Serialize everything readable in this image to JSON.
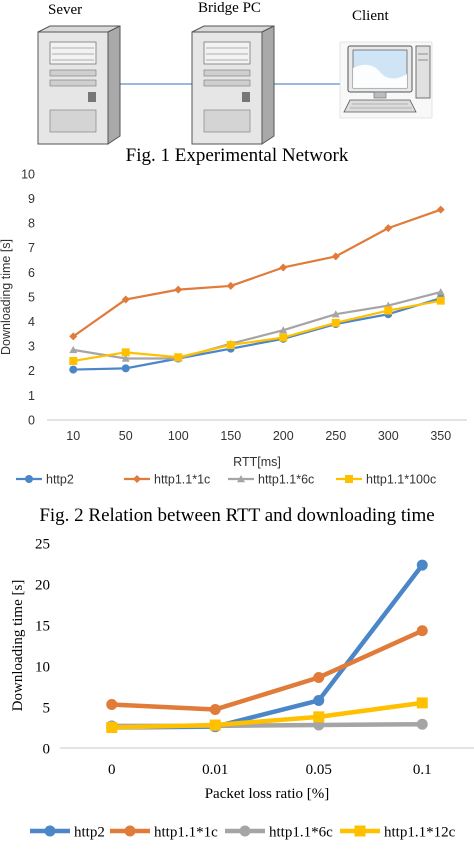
{
  "figure1": {
    "caption": "Fig. 1 Experimental Network",
    "nodes": [
      {
        "label": "Sever",
        "icon": "server-icon"
      },
      {
        "label": "Bridge PC",
        "icon": "server-icon"
      },
      {
        "label": "Client",
        "icon": "desktop-computer-icon"
      }
    ],
    "link_color": "#5b8fc7"
  },
  "chart_data": [
    {
      "type": "line",
      "caption": "Fig. 2 Relation between RTT and downloading time",
      "xlabel": "RTT[ms]",
      "ylabel": "Downloading time [s]",
      "categories": [
        "10",
        "50",
        "100",
        "150",
        "200",
        "250",
        "300",
        "350"
      ],
      "ylim": [
        0,
        10
      ],
      "yticks": [
        0,
        1,
        2,
        3,
        4,
        5,
        6,
        7,
        8,
        9,
        10
      ],
      "grid": false,
      "legend": "bottom",
      "series": [
        {
          "name": "http2",
          "color": "#4a86c8",
          "marker": "circle",
          "values": [
            2.05,
            2.1,
            2.5,
            2.9,
            3.3,
            3.9,
            4.3,
            4.95
          ]
        },
        {
          "name": "http1.1*1c",
          "color": "#e07b39",
          "marker": "diamond",
          "values": [
            3.4,
            4.9,
            5.3,
            5.45,
            6.2,
            6.65,
            7.8,
            8.55
          ]
        },
        {
          "name": "http1.1*6c",
          "color": "#a5a5a5",
          "marker": "triangle",
          "values": [
            2.85,
            2.5,
            2.5,
            3.1,
            3.65,
            4.3,
            4.65,
            5.2
          ]
        },
        {
          "name": "http1.1*100c",
          "color": "#ffc000",
          "marker": "square",
          "values": [
            2.4,
            2.75,
            2.55,
            3.05,
            3.35,
            3.95,
            4.45,
            4.85
          ]
        }
      ]
    },
    {
      "type": "line",
      "caption": "",
      "xlabel": "Packet loss ratio [%]",
      "ylabel": "Downloading  time [s]",
      "categories": [
        "0",
        "0.01",
        "0.05",
        "0.1"
      ],
      "ylim": [
        0,
        25
      ],
      "yticks": [
        0,
        5,
        10,
        15,
        20,
        25
      ],
      "grid": false,
      "legend": "bottom",
      "series": [
        {
          "name": "http2",
          "color": "#4a86c8",
          "marker": "circle",
          "values": [
            2.5,
            2.6,
            5.8,
            22.3
          ]
        },
        {
          "name": "http1.1*1c",
          "color": "#e07b39",
          "marker": "circle",
          "values": [
            5.3,
            4.7,
            8.6,
            14.3
          ]
        },
        {
          "name": "http1.1*6c",
          "color": "#a5a5a5",
          "marker": "circle",
          "values": [
            2.7,
            2.7,
            2.8,
            2.9
          ]
        },
        {
          "name": "http1.1*12c",
          "color": "#ffc000",
          "marker": "square",
          "values": [
            2.5,
            2.8,
            3.8,
            5.5
          ]
        }
      ]
    }
  ]
}
